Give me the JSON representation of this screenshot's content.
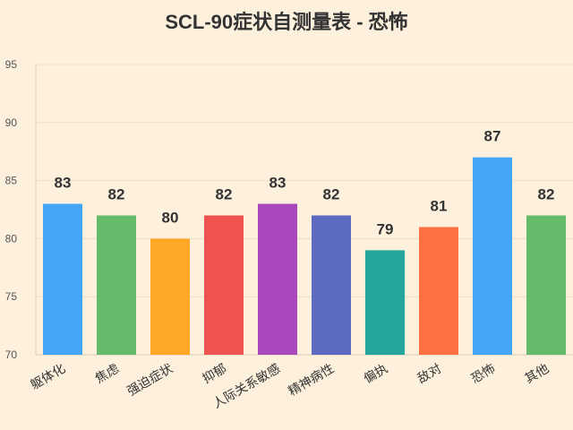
{
  "chart_data": {
    "type": "bar",
    "title": "SCL-90症状自测量表 - 恐怖",
    "xlabel": "",
    "ylabel": "",
    "categories": [
      "躯体化",
      "焦虑",
      "强迫症状",
      "抑郁",
      "人际关系敏感",
      "精神病性",
      "偏执",
      "敌对",
      "恐怖",
      "其他"
    ],
    "values": [
      83,
      82,
      80,
      82,
      83,
      82,
      79,
      81,
      87,
      82
    ],
    "ylim": [
      70,
      95
    ],
    "yticks": [
      70,
      75,
      80,
      85,
      90,
      95
    ],
    "grid": true,
    "legend": "none",
    "colors": [
      "#42a5f5",
      "#66bb6a",
      "#ffa726",
      "#ef5350",
      "#ab47bc",
      "#5c6bc0",
      "#26a69a",
      "#ff7043",
      "#42a5f5",
      "#66bb6a"
    ]
  }
}
